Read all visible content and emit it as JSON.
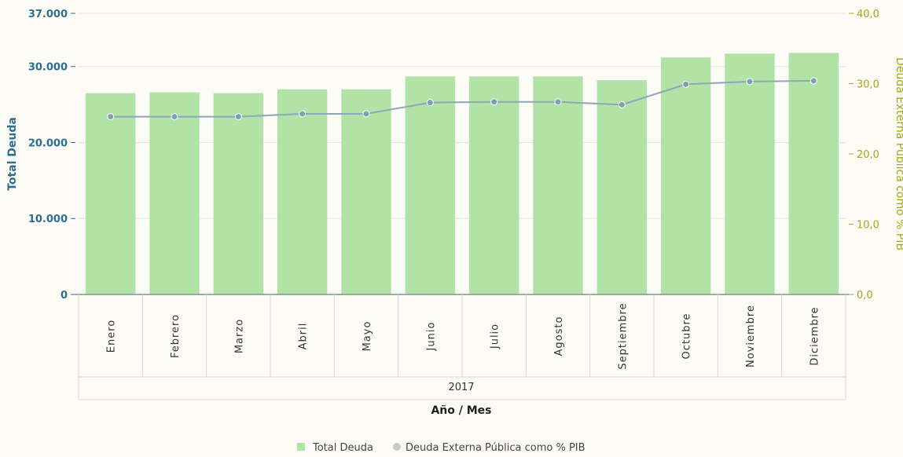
{
  "chart_data": {
    "type": "bar",
    "categories": [
      "Enero",
      "Febrero",
      "Marzo",
      "Abril",
      "Mayo",
      "Junio",
      "Julio",
      "Agosto",
      "Septiembre",
      "Octubre",
      "Noviembre",
      "Diciembre"
    ],
    "group_label": "2017",
    "xlabel": "Año / Mes",
    "ylabel_left": "Total Deuda",
    "ylabel_right": "Deuda Externa Pública como % PIB",
    "ylim_left": [
      0,
      37000
    ],
    "ylim_right": [
      0,
      40
    ],
    "yticks_left": [
      "0",
      "10.000",
      "20.000",
      "30.000",
      "37.000"
    ],
    "yticks_left_values": [
      0,
      10000,
      20000,
      30000,
      37000
    ],
    "yticks_right": [
      "0,0",
      "10,0",
      "20,0",
      "30,0",
      "40,0"
    ],
    "yticks_right_values": [
      0,
      10,
      20,
      30,
      40
    ],
    "series": [
      {
        "name": "Total Deuda",
        "type": "bar",
        "axis": "left",
        "color": "#b2e3a6",
        "values": [
          26500,
          26600,
          26500,
          27000,
          27000,
          28700,
          28700,
          28700,
          28200,
          31200,
          31700,
          31800
        ]
      },
      {
        "name": "Deuda Externa Pública como % PIB",
        "type": "line",
        "axis": "right",
        "color": "#8aa8b8",
        "values": [
          25.3,
          25.3,
          25.3,
          25.7,
          25.7,
          27.3,
          27.4,
          27.4,
          27.0,
          29.9,
          30.3,
          30.4
        ]
      }
    ],
    "legend_position": "bottom-center",
    "grid": true
  }
}
